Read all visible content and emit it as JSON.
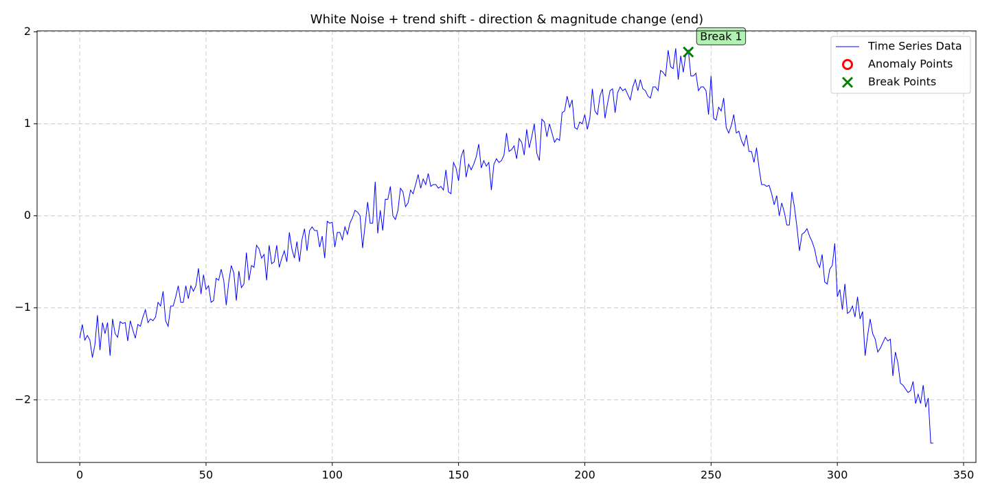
{
  "chart_data": {
    "type": "line",
    "title": "White Noise + trend shift - direction & magnitude change (end)",
    "xlim": [
      -16.9,
      354.9
    ],
    "ylim": [
      -2.68,
      2.01
    ],
    "xticks": [
      0,
      50,
      100,
      150,
      200,
      250,
      300,
      350
    ],
    "yticks": [
      {
        "value": -2,
        "label": "−2"
      },
      {
        "value": -1,
        "label": "−1"
      },
      0,
      1,
      2
    ],
    "grid": true,
    "legend": "upper right",
    "series": [
      {
        "name": "Time Series Data",
        "color": "#0000ff",
        "marker": "none",
        "x": [
          0,
          1,
          2,
          3,
          4,
          5,
          6,
          7,
          8,
          9,
          10,
          11,
          12,
          13,
          14,
          15,
          16,
          17,
          18,
          19,
          20,
          21,
          22,
          23,
          24,
          25,
          26,
          27,
          28,
          29,
          30,
          31,
          32,
          33,
          34,
          35,
          36,
          37,
          38,
          39,
          40,
          41,
          42,
          43,
          44,
          45,
          46,
          47,
          48,
          49,
          50,
          51,
          52,
          53,
          54,
          55,
          56,
          57,
          58,
          59,
          60,
          61,
          62,
          63,
          64,
          65,
          66,
          67,
          68,
          69,
          70,
          71,
          72,
          73,
          74,
          75,
          76,
          77,
          78,
          79,
          80,
          81,
          82,
          83,
          84,
          85,
          86,
          87,
          88,
          89,
          90,
          91,
          92,
          93,
          94,
          95,
          96,
          97,
          98,
          99,
          100,
          101,
          102,
          103,
          104,
          105,
          106,
          107,
          108,
          109,
          110,
          111,
          112,
          113,
          114,
          115,
          116,
          117,
          118,
          119,
          120,
          121,
          122,
          123,
          124,
          125,
          126,
          127,
          128,
          129,
          130,
          131,
          132,
          133,
          134,
          135,
          136,
          137,
          138,
          139,
          140,
          141,
          142,
          143,
          144,
          145,
          146,
          147,
          148,
          149,
          150,
          151,
          152,
          153,
          154,
          155,
          156,
          157,
          158,
          159,
          160,
          161,
          162,
          163,
          164,
          165,
          166,
          167,
          168,
          169,
          170,
          171,
          172,
          173,
          174,
          175,
          176,
          177,
          178,
          179,
          180,
          181,
          182,
          183,
          184,
          185,
          186,
          187,
          188,
          189,
          190,
          191,
          192,
          193,
          194,
          195,
          196,
          197,
          198,
          199,
          200,
          201,
          202,
          203,
          204,
          205,
          206,
          207,
          208,
          209,
          210,
          211,
          212,
          213,
          214,
          215,
          216,
          217,
          218,
          219,
          220,
          221,
          222,
          223,
          224,
          225,
          226,
          227,
          228,
          229,
          230,
          231,
          232,
          233,
          234,
          235,
          236,
          237,
          238,
          239,
          240,
          241,
          242,
          243,
          244,
          245,
          246,
          247,
          248,
          249,
          250,
          251,
          252,
          253,
          254,
          255,
          256,
          257,
          258,
          259,
          260,
          261,
          262,
          263,
          264,
          265,
          266,
          267,
          268,
          269,
          270,
          271,
          272,
          273,
          274,
          275,
          276,
          277,
          278,
          279,
          280,
          281,
          282,
          283,
          284,
          285,
          286,
          287,
          288,
          289,
          290,
          291,
          292,
          293,
          294,
          295,
          296,
          297,
          298,
          299,
          300,
          301,
          302,
          303,
          304,
          305,
          306,
          307,
          308,
          309,
          310,
          311,
          312,
          313,
          314,
          315,
          316,
          317,
          318,
          319,
          320,
          321,
          322,
          323,
          324,
          325,
          326,
          327,
          328,
          329,
          330,
          331,
          332,
          333,
          334,
          335,
          336,
          337,
          338
        ],
        "values": [
          -1.33,
          -1.18,
          -1.35,
          -1.3,
          -1.35,
          -1.54,
          -1.4,
          -1.08,
          -1.46,
          -1.16,
          -1.28,
          -1.16,
          -1.52,
          -1.12,
          -1.28,
          -1.32,
          -1.15,
          -1.17,
          -1.16,
          -1.36,
          -1.14,
          -1.24,
          -1.33,
          -1.18,
          -1.2,
          -1.1,
          -1.02,
          -1.16,
          -1.12,
          -1.14,
          -1.1,
          -0.94,
          -0.98,
          -0.82,
          -1.14,
          -1.2,
          -0.98,
          -0.98,
          -0.88,
          -0.76,
          -0.94,
          -0.94,
          -0.76,
          -0.9,
          -0.76,
          -0.82,
          -0.76,
          -0.57,
          -0.85,
          -0.64,
          -0.8,
          -0.76,
          -0.94,
          -0.92,
          -0.68,
          -0.7,
          -0.58,
          -0.7,
          -0.97,
          -0.72,
          -0.54,
          -0.62,
          -0.92,
          -0.6,
          -0.78,
          -0.74,
          -0.4,
          -0.7,
          -0.54,
          -0.56,
          -0.32,
          -0.36,
          -0.46,
          -0.42,
          -0.7,
          -0.32,
          -0.52,
          -0.5,
          -0.32,
          -0.56,
          -0.46,
          -0.38,
          -0.5,
          -0.18,
          -0.36,
          -0.46,
          -0.28,
          -0.5,
          -0.26,
          -0.14,
          -0.38,
          -0.16,
          -0.12,
          -0.16,
          -0.16,
          -0.34,
          -0.22,
          -0.46,
          -0.06,
          -0.08,
          -0.07,
          -0.34,
          -0.18,
          -0.18,
          -0.26,
          -0.12,
          -0.2,
          -0.08,
          -0.02,
          0.06,
          0.04,
          0.0,
          -0.35,
          -0.1,
          0.15,
          -0.08,
          -0.08,
          0.37,
          -0.19,
          0.06,
          -0.16,
          0.18,
          0.18,
          0.32,
          0.0,
          -0.04,
          0.06,
          0.3,
          0.26,
          0.1,
          0.14,
          0.28,
          0.24,
          0.34,
          0.45,
          0.3,
          0.4,
          0.34,
          0.46,
          0.32,
          0.34,
          0.34,
          0.3,
          0.32,
          0.28,
          0.5,
          0.26,
          0.24,
          0.58,
          0.52,
          0.38,
          0.64,
          0.72,
          0.42,
          0.56,
          0.5,
          0.56,
          0.64,
          0.78,
          0.52,
          0.6,
          0.54,
          0.58,
          0.28,
          0.56,
          0.62,
          0.58,
          0.6,
          0.66,
          0.9,
          0.7,
          0.72,
          0.76,
          0.62,
          0.84,
          0.8,
          0.66,
          0.94,
          0.74,
          0.86,
          1.0,
          0.68,
          0.6,
          1.05,
          1.02,
          0.86,
          1.0,
          0.9,
          0.8,
          0.84,
          0.82,
          1.12,
          1.14,
          1.3,
          1.18,
          1.26,
          0.96,
          0.94,
          1.02,
          1.0,
          1.1,
          0.94,
          1.06,
          1.38,
          1.14,
          1.1,
          1.3,
          1.38,
          1.06,
          1.22,
          1.36,
          1.38,
          1.12,
          1.34,
          1.4,
          1.36,
          1.38,
          1.32,
          1.26,
          1.4,
          1.48,
          1.36,
          1.48,
          1.38,
          1.36,
          1.3,
          1.28,
          1.4,
          1.4,
          1.36,
          1.58,
          1.56,
          1.52,
          1.8,
          1.62,
          1.6,
          1.82,
          1.48,
          1.74,
          1.56,
          1.76,
          1.8,
          1.52,
          1.52,
          1.55,
          1.36,
          1.4,
          1.4,
          1.36,
          1.1,
          1.52,
          1.06,
          1.04,
          1.18,
          1.14,
          1.28,
          0.96,
          0.9,
          0.98,
          1.1,
          0.9,
          0.92,
          0.82,
          0.76,
          0.88,
          0.7,
          0.7,
          0.58,
          0.74,
          0.52,
          0.34,
          0.34,
          0.32,
          0.33,
          0.24,
          0.12,
          0.22,
          0.0,
          0.14,
          0.04,
          -0.1,
          -0.1,
          0.26,
          0.1,
          -0.12,
          -0.38,
          -0.2,
          -0.18,
          -0.14,
          -0.22,
          -0.28,
          -0.36,
          -0.5,
          -0.56,
          -0.42,
          -0.72,
          -0.74,
          -0.58,
          -0.54,
          -0.3,
          -0.88,
          -0.8,
          -1.02,
          -0.74,
          -1.06,
          -1.04,
          -0.98,
          -1.1,
          -0.88,
          -1.12,
          -1.04,
          -1.52,
          -1.3,
          -1.12,
          -1.28,
          -1.34,
          -1.48,
          -1.44,
          -1.38,
          -1.32,
          -1.36,
          -1.34,
          -1.74,
          -1.48,
          -1.6,
          -1.82,
          -1.84,
          -1.88,
          -1.92,
          -1.9,
          -1.8,
          -2.04,
          -1.94,
          -2.04,
          -1.84,
          -2.08,
          -1.98,
          -2.47,
          -2.47
        ]
      },
      {
        "name": "Anomaly Points",
        "color": "#ff0000",
        "marker": "o",
        "x": [],
        "values": []
      },
      {
        "name": "Break Points",
        "color": "#008000",
        "marker": "x",
        "x": [
          241
        ],
        "values": [
          1.78
        ],
        "labels": [
          "Break 1"
        ],
        "label_color": "#a8f0a8"
      }
    ]
  }
}
